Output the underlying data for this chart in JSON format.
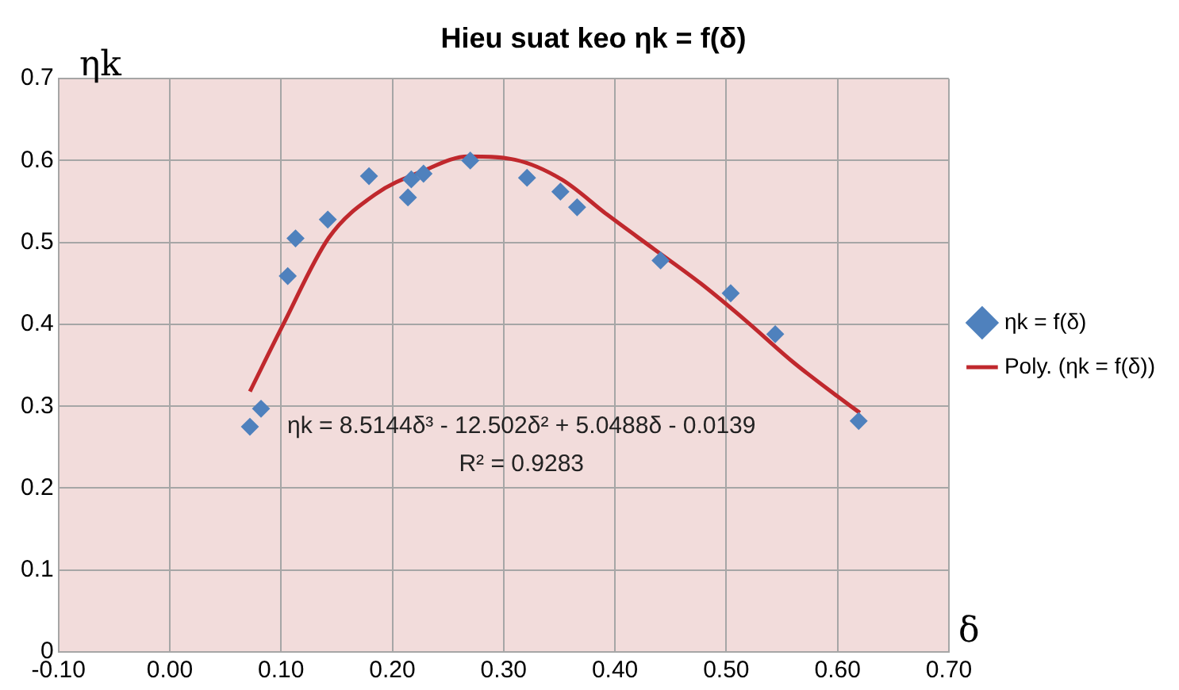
{
  "chart_data": {
    "type": "scatter",
    "title": "Hieu suat keo ηk = f(δ)",
    "xlabel": "δ",
    "ylabel": "ηk",
    "xlim": [
      -0.1,
      0.7
    ],
    "ylim": [
      0,
      0.7
    ],
    "xticks": [
      {
        "value": -0.1,
        "label": "-0.10"
      },
      {
        "value": 0,
        "label": "0.00"
      },
      {
        "value": 0.1,
        "label": "0.10"
      },
      {
        "value": 0.2,
        "label": "0.20"
      },
      {
        "value": 0.3,
        "label": "0.30"
      },
      {
        "value": 0.4,
        "label": "0.40"
      },
      {
        "value": 0.5,
        "label": "0.50"
      },
      {
        "value": 0.6,
        "label": "0.60"
      },
      {
        "value": 0.7,
        "label": "0.70"
      }
    ],
    "yticks": [
      0,
      0.1,
      0.2,
      0.3,
      0.4,
      0.5,
      0.6,
      0.7
    ],
    "grid": true,
    "legend": "right",
    "marker": "diamond",
    "series": [
      {
        "name": "ηk = f(δ)",
        "color": "#4f81bd",
        "x": [
          0.072,
          0.082,
          0.106,
          0.113,
          0.142,
          0.179,
          0.214,
          0.217,
          0.228,
          0.27,
          0.321,
          0.351,
          0.366,
          0.441,
          0.504,
          0.544,
          0.619
        ],
        "values": [
          0.275,
          0.297,
          0.459,
          0.505,
          0.528,
          0.581,
          0.555,
          0.577,
          0.584,
          0.6,
          0.579,
          0.562,
          0.543,
          0.478,
          0.438,
          0.388,
          0.282
        ]
      },
      {
        "name": "Poly. (ηk = f(δ))",
        "color": "#c0282d",
        "type": "line",
        "marker": "none",
        "line_style": "solid",
        "x": [
          0.072,
          0.102,
          0.143,
          0.185,
          0.227,
          0.268,
          0.31,
          0.352,
          0.393,
          0.435,
          0.477,
          0.518,
          0.56,
          0.6,
          0.62
        ],
        "values": [
          0.318,
          0.4,
          0.506,
          0.559,
          0.587,
          0.605,
          0.601,
          0.577,
          0.534,
          0.492,
          0.45,
          0.404,
          0.354,
          0.312,
          0.292
        ]
      }
    ],
    "annotations": [
      "ηk = 8.5144δ³ - 12.502δ² + 5.0488δ - 0.0139",
      "R² = 0.9283"
    ]
  }
}
